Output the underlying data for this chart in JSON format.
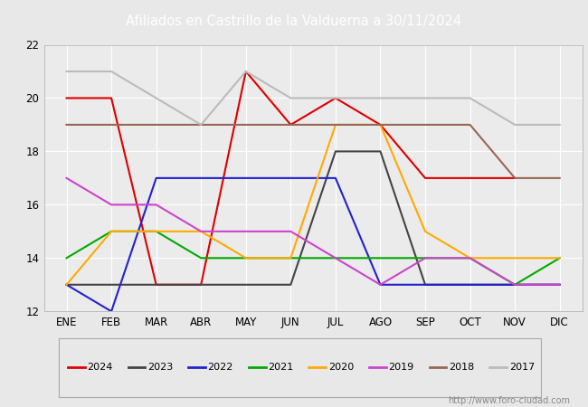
{
  "title": "Afiliados en Castrillo de la Valduerna a 30/11/2024",
  "months": [
    "ENE",
    "FEB",
    "MAR",
    "ABR",
    "MAY",
    "JUN",
    "JUL",
    "AGO",
    "SEP",
    "OCT",
    "NOV",
    "DIC"
  ],
  "ylim": [
    12,
    22
  ],
  "yticks": [
    12,
    14,
    16,
    18,
    20,
    22
  ],
  "series": [
    {
      "year": "2024",
      "color": "#dd0000",
      "values": [
        20,
        20,
        13,
        13,
        21,
        19,
        20,
        19,
        17,
        17,
        17,
        null
      ]
    },
    {
      "year": "2023",
      "color": "#444444",
      "values": [
        13,
        13,
        13,
        13,
        13,
        13,
        18,
        18,
        13,
        13,
        13,
        13
      ]
    },
    {
      "year": "2022",
      "color": "#2222cc",
      "values": [
        13,
        12,
        17,
        17,
        17,
        17,
        17,
        13,
        13,
        13,
        13,
        13
      ]
    },
    {
      "year": "2021",
      "color": "#00aa00",
      "values": [
        14,
        15,
        15,
        14,
        14,
        14,
        14,
        14,
        14,
        14,
        13,
        14
      ]
    },
    {
      "year": "2020",
      "color": "#ffaa00",
      "values": [
        13,
        15,
        15,
        15,
        14,
        14,
        19,
        19,
        15,
        14,
        14,
        14
      ]
    },
    {
      "year": "2019",
      "color": "#cc44cc",
      "values": [
        17,
        16,
        16,
        15,
        15,
        15,
        14,
        13,
        14,
        14,
        13,
        13
      ]
    },
    {
      "year": "2018",
      "color": "#996655",
      "values": [
        19,
        19,
        19,
        19,
        19,
        19,
        19,
        19,
        19,
        19,
        17,
        17
      ]
    },
    {
      "year": "2017",
      "color": "#bbbbbb",
      "values": [
        21,
        21,
        20,
        19,
        21,
        20,
        20,
        20,
        20,
        20,
        19,
        19
      ]
    }
  ],
  "url": "http://www.foro-ciudad.com",
  "header_bg": "#4472c4",
  "header_text_color": "#ffffff",
  "plot_bg": "#ebebeb",
  "fig_bg": "#e8e8e8",
  "grid_color": "#ffffff"
}
